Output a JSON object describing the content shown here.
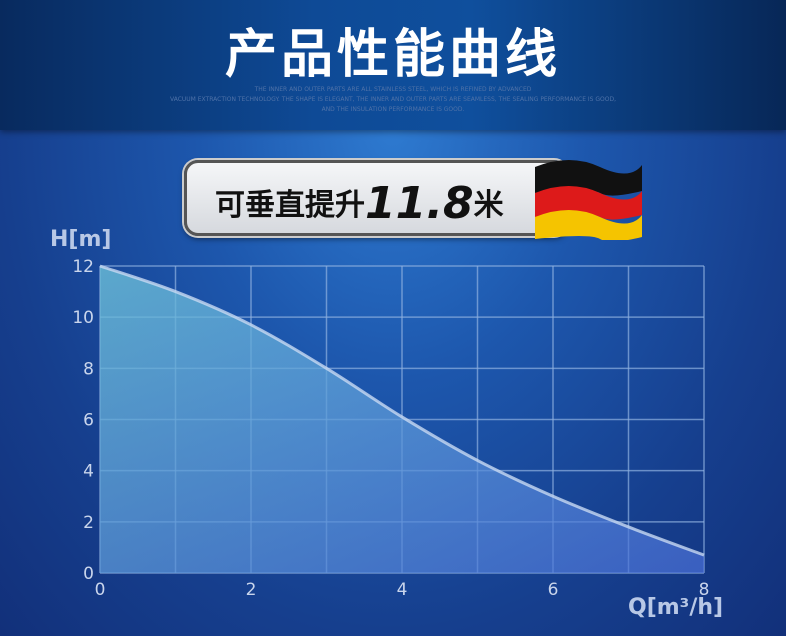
{
  "header": {
    "title": "产品性能曲线",
    "subtitle_lines": [
      "THE INNER AND OUTER PARTS ARE ALL STAINLESS STEEL, WHICH IS REFINED BY ADVANCED",
      "VACUUM EXTRACTION TECHNOLOGY. THE SHAPE IS ELEGANT, THE INNER AND OUTER PARTS ARE SEAMLESS, THE SEALING PERFORMANCE IS GOOD,",
      "AND THE INSULATION PERFORMANCE IS GOOD."
    ]
  },
  "badge": {
    "prefix": "可垂直提升",
    "value": "11.8",
    "suffix": "米",
    "flag_colors": [
      "#111111",
      "#dd1a1a",
      "#f5c400"
    ]
  },
  "chart_data": {
    "type": "area",
    "ylabel": "H[m]",
    "xlabel": "Q[m³/h]",
    "xlim": [
      0,
      8
    ],
    "ylim": [
      0,
      12
    ],
    "xticks": [
      "0",
      "2",
      "4",
      "6",
      "8"
    ],
    "yticks": [
      "0",
      "2",
      "4",
      "6",
      "8",
      "10",
      "12"
    ],
    "grid": true,
    "x": [
      0,
      1,
      2,
      3,
      4,
      5,
      6,
      7,
      8
    ],
    "y": [
      12,
      11,
      9.7,
      8,
      6.1,
      4.4,
      3,
      1.8,
      0.7
    ]
  }
}
